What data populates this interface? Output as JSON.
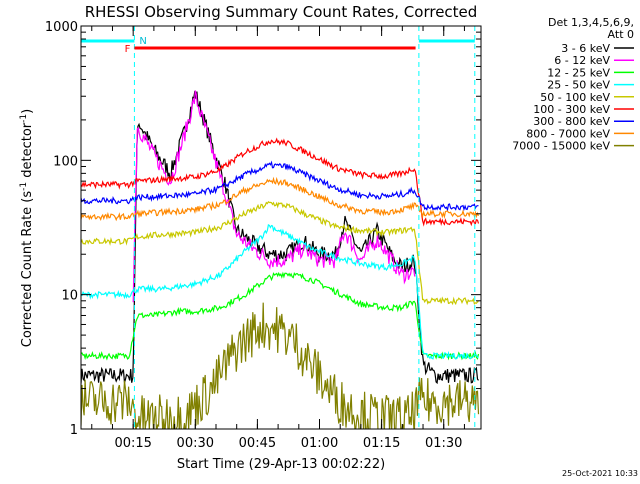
{
  "chart_data": {
    "type": "line",
    "title": "RHESSI Observing Summary Count Rates, Corrected",
    "xlabel": "Start Time (29-Apr-13 00:02:22)",
    "ylabel": "Corrected Count Rate (s",
    "ylabel_sup1": "-1",
    "ylabel_mid": " detector",
    "ylabel_sup2": "-1",
    "ylabel_end": ")",
    "y_scale": "log",
    "ylim": [
      1,
      1000
    ],
    "xlim_minutes": [
      2.4,
      99.0
    ],
    "x_ticks": [
      {
        "m": 15,
        "label": "00:15"
      },
      {
        "m": 30,
        "label": "00:30"
      },
      {
        "m": 45,
        "label": "00:45"
      },
      {
        "m": 60,
        "label": "01:00"
      },
      {
        "m": 75,
        "label": "01:15"
      },
      {
        "m": 90,
        "label": "01:30"
      }
    ],
    "y_ticks": [
      {
        "v": 1,
        "label": "1"
      },
      {
        "v": 10,
        "label": "10"
      },
      {
        "v": 100,
        "label": "100"
      },
      {
        "v": 1000,
        "label": "1000"
      }
    ],
    "legend_header": [
      "Det 1,3,4,5,6,9,",
      "Att 0"
    ],
    "footer_date": "25-Oct-2021 10:33",
    "annotations": {
      "flare_flag": "F",
      "night_flag": "N",
      "flare_interval_minutes": [
        15.3,
        83.2
      ],
      "night_intervals_minutes": [
        [
          2.4,
          15.3
        ],
        [
          84.0,
          97.5
        ]
      ]
    },
    "series": [
      {
        "name": "3 - 6 keV",
        "color": "#000000",
        "x": [
          2.4,
          10,
          15.0,
          16.0,
          20,
          24,
          27,
          30,
          34,
          37,
          40,
          44,
          48,
          52,
          56,
          60,
          64,
          66,
          70,
          74,
          78,
          80,
          83,
          85,
          88,
          92,
          96,
          98.5
        ],
        "values": [
          2.5,
          2.5,
          2.5,
          200,
          120,
          80,
          150,
          320,
          130,
          70,
          30,
          24,
          20,
          20,
          25,
          20,
          20,
          35,
          20,
          30,
          18,
          16,
          18,
          3,
          2.5,
          2.5,
          2.5,
          2.5
        ]
      },
      {
        "name": "6 - 12 keV",
        "color": "#ff00ff",
        "x": [
          15.0,
          16.0,
          20,
          24,
          27,
          30,
          34,
          37,
          40,
          44,
          48,
          52,
          56,
          60,
          64,
          66,
          70,
          74,
          78,
          80,
          83
        ],
        "values": [
          10,
          180,
          110,
          70,
          140,
          300,
          120,
          60,
          28,
          22,
          18,
          18,
          22,
          18,
          18,
          30,
          18,
          26,
          17,
          14,
          15
        ]
      },
      {
        "name": "12 - 25 keV",
        "color": "#00ff00",
        "x": [
          2.4,
          10,
          14,
          16,
          20,
          26,
          30,
          36,
          42,
          48,
          52,
          58,
          64,
          70,
          76,
          80,
          83,
          85,
          90,
          98.5
        ],
        "values": [
          3.5,
          3.5,
          3.5,
          7,
          7,
          7.5,
          7.5,
          8,
          10,
          13.5,
          14.5,
          13,
          10.5,
          8.5,
          8,
          8,
          9,
          3.5,
          3.5,
          3.5
        ]
      },
      {
        "name": "25 - 50 keV",
        "color": "#00ffff",
        "x": [
          2.4,
          14,
          16,
          22,
          30,
          36,
          42,
          46,
          48,
          50,
          54,
          58,
          64,
          70,
          76,
          80,
          83,
          85,
          90,
          98.5
        ],
        "values": [
          10,
          10,
          11,
          11,
          12,
          14,
          21,
          27,
          33,
          30,
          26,
          22,
          19,
          17,
          16,
          17,
          19,
          3.5,
          3.5,
          3.5
        ]
      },
      {
        "name": "50 - 100 keV",
        "color": "#c8c800",
        "x": [
          2.4,
          14,
          16,
          22,
          30,
          36,
          42,
          48,
          52,
          58,
          64,
          70,
          76,
          80,
          83,
          85,
          90,
          98.5
        ],
        "values": [
          25,
          25,
          27,
          28,
          29,
          32,
          40,
          48,
          46,
          38,
          32,
          30,
          29,
          30,
          31,
          9,
          9,
          9
        ]
      },
      {
        "name": "100 - 300 keV",
        "color": "#ff0000",
        "x": [
          2.4,
          14,
          16,
          22,
          30,
          36,
          42,
          48,
          52,
          58,
          64,
          70,
          76,
          80,
          83,
          85,
          90,
          98.5
        ],
        "values": [
          66,
          66,
          70,
          72,
          75,
          85,
          115,
          140,
          135,
          110,
          88,
          78,
          76,
          80,
          88,
          35,
          35,
          35
        ]
      },
      {
        "name": "300 - 800 keV",
        "color": "#0000ff",
        "x": [
          2.4,
          14,
          16,
          22,
          30,
          36,
          42,
          48,
          52,
          58,
          64,
          70,
          76,
          80,
          83,
          85,
          90,
          98.5
        ],
        "values": [
          50,
          50,
          53,
          54,
          56,
          62,
          78,
          92,
          90,
          75,
          62,
          55,
          54,
          56,
          60,
          45,
          45,
          45
        ]
      },
      {
        "name": "800 - 7000 keV",
        "color": "#ff8800",
        "x": [
          2.4,
          14,
          16,
          22,
          30,
          36,
          42,
          48,
          52,
          58,
          64,
          70,
          76,
          80,
          83,
          85,
          90,
          98.5
        ],
        "values": [
          38,
          38,
          40,
          41,
          43,
          47,
          60,
          70,
          68,
          57,
          47,
          42,
          41,
          43,
          46,
          40,
          40,
          40
        ]
      },
      {
        "name": "7000 - 15000 keV",
        "color": "#808000",
        "x": [
          2.4,
          14,
          16,
          22,
          28,
          34,
          40,
          46,
          50,
          54,
          58,
          62,
          66,
          70,
          76,
          82,
          84,
          90,
          98.5
        ],
        "values": [
          1.6,
          1.6,
          1.2,
          1.2,
          1.3,
          2.0,
          4.0,
          6.0,
          5.5,
          4.5,
          3.0,
          2.0,
          1.5,
          1.3,
          1.2,
          1.2,
          1.6,
          1.6,
          1.6
        ]
      }
    ]
  }
}
